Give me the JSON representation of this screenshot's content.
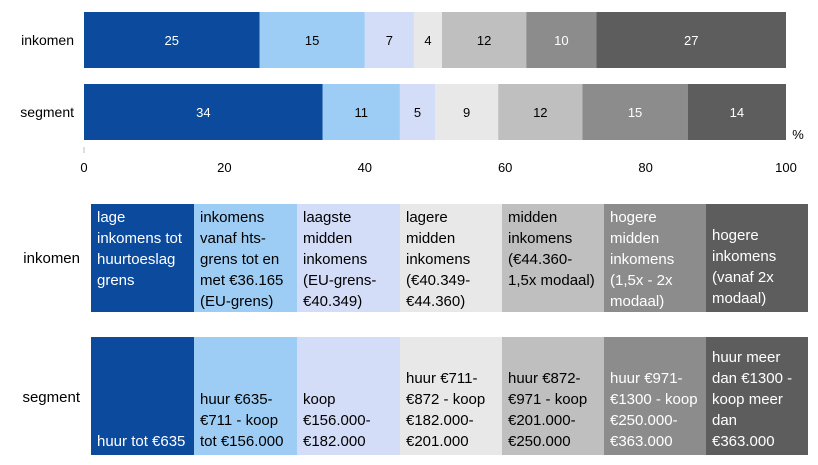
{
  "chart_data": {
    "type": "bar",
    "orientation": "horizontal",
    "stacked": true,
    "categories": [
      "inkomen",
      "segment"
    ],
    "series": [
      {
        "values": [
          25,
          34
        ],
        "color": "#0b4a9c"
      },
      {
        "values": [
          15,
          11
        ],
        "color": "#9dcdf4"
      },
      {
        "values": [
          7,
          5
        ],
        "color": "#d3ddf8"
      },
      {
        "values": [
          4,
          9
        ],
        "color": "#e8e8e8"
      },
      {
        "values": [
          12,
          12
        ],
        "color": "#bfbfbf"
      },
      {
        "values": [
          10,
          15
        ],
        "color": "#8c8c8c"
      },
      {
        "values": [
          27,
          14
        ],
        "color": "#5d5d5d"
      }
    ],
    "xlim": [
      0,
      100
    ],
    "xticks": [
      "0",
      "20",
      "40",
      "60",
      "80",
      "100"
    ],
    "unit_label": "%",
    "data_label_colors": [
      "#ffffff",
      "#000000",
      "#000000",
      "#000000",
      "#000000",
      "#ffffff",
      "#ffffff"
    ]
  },
  "legend": {
    "rows": [
      {
        "label": "inkomen",
        "cells": [
          "lage inkomens tot huurtoeslag grens",
          "inkomens vanaf hts-grens tot en met €36.165 (EU-grens)",
          "laagste midden inkomens (EU-grens-€40.349)",
          "lagere midden inkomens (€40.349-€44.360)",
          "midden inkomens (€44.360-1,5x modaal)",
          "hogere midden inkomens (1,5x - 2x modaal)",
          "hogere inkomens (vanaf 2x modaal)"
        ]
      },
      {
        "label": "segment",
        "cells": [
          "huur tot €635",
          "huur €635-€711 - koop tot €156.000",
          "koop €156.000-€182.000",
          "huur €711-€872 - koop €182.000-€201.000",
          "huur €872-€971 - koop €201.000-€250.000",
          "huur €971-€1300 - koop €250.000-€363.000",
          "huur meer dan €1300 - koop meer dan €363.000"
        ]
      }
    ],
    "cell_colors": [
      "#0b4a9c",
      "#9dcdf4",
      "#d3ddf8",
      "#e8e8e8",
      "#bfbfbf",
      "#8c8c8c",
      "#5d5d5d"
    ],
    "cell_text_colors": [
      "#ffffff",
      "#000000",
      "#000000",
      "#000000",
      "#000000",
      "#ffffff",
      "#ffffff"
    ]
  }
}
